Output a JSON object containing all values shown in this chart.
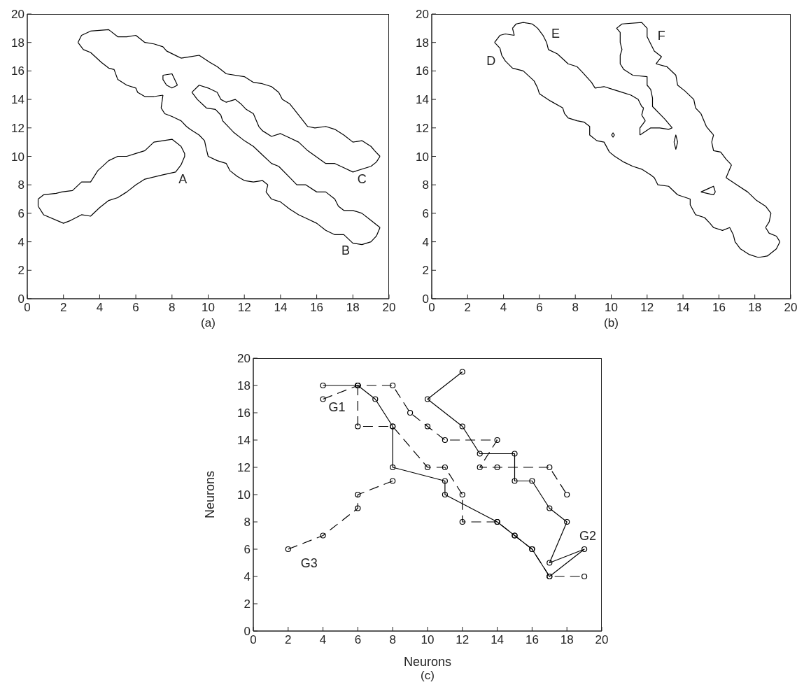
{
  "chart_data": [
    {
      "type": "line",
      "xlim": [
        0,
        20
      ],
      "ylim": [
        0,
        20
      ],
      "xticks": [
        0,
        2,
        4,
        6,
        8,
        10,
        12,
        14,
        16,
        18,
        20
      ],
      "yticks": [
        0,
        2,
        4,
        6,
        8,
        10,
        12,
        14,
        16,
        18,
        20
      ],
      "grid": false,
      "legend": false,
      "series": [
        {
          "color": "#000000",
          "line_style": "solid",
          "x": [
            2.8,
            3.0,
            3.5,
            4.5,
            5.0,
            5.5,
            6.0,
            6.5,
            7.0,
            7.5,
            7.7,
            8.5,
            9.0,
            9.5,
            10.1,
            10.5,
            11.0,
            12.0,
            12.5,
            13.0,
            13.5,
            13.9,
            14.1,
            14.5,
            15.0,
            15.5,
            15.9,
            16.5,
            17.0,
            17.5,
            18.0,
            18.5,
            19.0,
            19.2,
            19.5
          ],
          "values": [
            18.0,
            18.5,
            18.8,
            18.9,
            18.4,
            18.4,
            18.5,
            18.0,
            17.9,
            17.7,
            17.4,
            16.9,
            17.0,
            17.1,
            16.6,
            16.3,
            15.8,
            15.6,
            15.2,
            15.1,
            14.9,
            14.5,
            14.0,
            13.7,
            12.9,
            12.1,
            12.0,
            12.1,
            11.9,
            11.5,
            11.0,
            11.1,
            10.7,
            10.4,
            10.0
          ]
        },
        {
          "color": "#000000",
          "line_style": "solid",
          "x": [
            19.5,
            19.3,
            19.0,
            18.0,
            17.5,
            17.0,
            16.5,
            15.5,
            15.0,
            14.5,
            14.0,
            13.5,
            13.0,
            12.8,
            12.5,
            12.1,
            11.8,
            11.5,
            11.0,
            10.7,
            10.5,
            10.0,
            9.5,
            9.1
          ],
          "values": [
            10.0,
            9.6,
            9.3,
            8.9,
            9.2,
            9.5,
            9.5,
            10.4,
            11.0,
            11.3,
            11.6,
            11.4,
            11.8,
            12.1,
            13.0,
            13.3,
            13.7,
            14.0,
            13.8,
            14.0,
            14.5,
            14.8,
            15.0,
            14.5
          ]
        },
        {
          "color": "#000000",
          "line_style": "solid",
          "x": [
            9.1,
            9.4,
            9.9,
            10.4,
            10.7,
            10.8,
            11.4,
            12.0,
            12.5,
            13.0,
            13.5,
            13.9,
            14.6,
            14.9,
            15.4,
            16.0,
            16.5,
            17.0,
            17.2,
            17.5,
            18.0,
            18.5,
            19.0,
            19.5
          ],
          "values": [
            14.5,
            14.0,
            13.4,
            13.3,
            12.9,
            12.5,
            11.7,
            11.1,
            10.7,
            10.1,
            9.5,
            9.3,
            8.4,
            8.0,
            8.0,
            7.5,
            7.5,
            7.0,
            6.5,
            6.2,
            6.2,
            6.0,
            5.5,
            5.0
          ]
        },
        {
          "color": "#000000",
          "line_style": "solid",
          "x": [
            19.5,
            19.3,
            19.0,
            18.5,
            18.0,
            17.5,
            17.0,
            16.5,
            16.0,
            15.5,
            15.0,
            14.5,
            14.0,
            13.5,
            13.2
          ],
          "values": [
            5.0,
            4.4,
            4.0,
            3.8,
            3.9,
            4.5,
            4.5,
            4.8,
            5.3,
            5.6,
            5.9,
            6.3,
            6.8,
            7.0,
            7.5
          ]
        },
        {
          "color": "#000000",
          "line_style": "solid",
          "x": [
            13.2,
            13.3
          ],
          "values": [
            7.5,
            8.0
          ]
        },
        {
          "color": "#000000",
          "line_style": "solid",
          "x": [
            13.3,
            13.0,
            12.5,
            12.0,
            11.6,
            11.2,
            11.0,
            10.5,
            10.0,
            9.9,
            9.8,
            9.5,
            9.0,
            8.8,
            8.5,
            8.0,
            7.6,
            7.4
          ],
          "values": [
            8.0,
            8.3,
            8.2,
            8.3,
            8.6,
            9.0,
            9.5,
            9.7,
            10.0,
            10.5,
            11.1,
            11.5,
            11.9,
            12.1,
            12.5,
            12.8,
            13.0,
            13.4
          ]
        },
        {
          "color": "#000000",
          "line_style": "solid",
          "x": [
            7.4,
            7.5
          ],
          "values": [
            13.4,
            14.3
          ]
        },
        {
          "color": "#000000",
          "line_style": "solid",
          "x": [
            7.5,
            7.0,
            6.5,
            6.1,
            6.0,
            5.5,
            5.0,
            4.8,
            4.5,
            4.1,
            3.5,
            3.1,
            2.8
          ],
          "values": [
            14.3,
            14.2,
            14.2,
            14.5,
            14.8,
            15.0,
            15.4,
            16.1,
            16.2,
            16.6,
            17.3,
            17.5,
            18.0
          ]
        },
        {
          "color": "#000000",
          "line_style": "solid",
          "x": [
            7.5,
            8.0,
            8.3
          ],
          "values": [
            15.7,
            15.8,
            15.0
          ]
        },
        {
          "color": "#000000",
          "line_style": "solid",
          "x": [
            8.3,
            8.0,
            7.7,
            7.5,
            7.5
          ],
          "values": [
            15.0,
            14.8,
            15.0,
            15.4,
            15.7
          ]
        },
        {
          "color": "#000000",
          "line_style": "solid",
          "x": [
            0.6,
            0.9,
            1.6,
            1.9,
            2.5,
            3.0,
            3.5,
            3.9,
            4.5,
            5.0,
            5.5,
            6.0,
            6.5,
            7.0,
            7.5,
            8.0,
            8.5,
            8.7,
            8.7,
            8.5,
            8.2,
            7.5,
            6.5,
            6.0,
            5.5,
            5.0,
            4.5,
            4.0,
            3.5,
            3.0,
            2.4,
            2.0,
            0.9,
            0.6
          ],
          "values": [
            7.0,
            7.3,
            7.4,
            7.5,
            7.6,
            8.2,
            8.2,
            9.0,
            9.7,
            10.0,
            10.0,
            10.2,
            10.4,
            11.0,
            11.1,
            11.2,
            10.7,
            10.2,
            10.0,
            9.4,
            8.9,
            8.7,
            8.4,
            8.0,
            7.5,
            7.1,
            6.9,
            6.4,
            5.8,
            5.9,
            5.5,
            5.3,
            5.9,
            6.5
          ]
        },
        {
          "color": "#000000",
          "line_style": "solid",
          "x": [
            0.6,
            0.6
          ],
          "values": [
            6.5,
            7.0
          ]
        }
      ],
      "annotations": [
        "A",
        "B",
        "C",
        "(a)"
      ]
    },
    {
      "type": "line",
      "xlim": [
        0,
        20
      ],
      "ylim": [
        0,
        20
      ],
      "xticks": [
        0,
        2,
        4,
        6,
        8,
        10,
        12,
        14,
        16,
        18,
        20
      ],
      "yticks": [
        0,
        2,
        4,
        6,
        8,
        10,
        12,
        14,
        16,
        18,
        20
      ],
      "grid": false,
      "legend": false,
      "series": [
        {
          "color": "#000000",
          "line_style": "solid",
          "x": [
            3.5,
            3.8,
            4.1,
            4.6
          ],
          "values": [
            18.0,
            18.5,
            18.6,
            18.5
          ]
        },
        {
          "color": "#000000",
          "line_style": "solid",
          "x": [
            4.6,
            4.5
          ],
          "values": [
            18.5,
            19.0
          ]
        },
        {
          "color": "#000000",
          "line_style": "solid",
          "x": [
            4.5,
            4.7,
            5.1,
            5.6,
            5.9,
            6.2,
            6.4,
            6.5,
            7.0,
            7.6,
            8.1,
            8.4,
            8.9,
            9.1,
            9.6,
            10.1,
            10.6,
            11.1,
            11.5,
            11.7,
            11.8
          ],
          "values": [
            19.0,
            19.3,
            19.4,
            19.3,
            19.0,
            18.5,
            18.0,
            17.5,
            17.2,
            16.5,
            16.3,
            15.9,
            15.2,
            14.8,
            14.9,
            14.7,
            14.5,
            14.3,
            14.0,
            13.5,
            13.4
          ]
        },
        {
          "color": "#000000",
          "line_style": "solid",
          "x": [
            11.8,
            11.7
          ],
          "values": [
            13.4,
            12.9
          ]
        },
        {
          "color": "#000000",
          "line_style": "solid",
          "x": [
            11.7,
            11.9
          ],
          "values": [
            12.9,
            12.5
          ]
        },
        {
          "color": "#000000",
          "line_style": "solid",
          "x": [
            11.9,
            11.6,
            11.6
          ],
          "values": [
            12.5,
            12.0,
            11.5
          ]
        },
        {
          "color": "#000000",
          "line_style": "solid",
          "x": [
            11.6,
            12.2,
            12.7,
            13.2,
            13.4
          ],
          "values": [
            11.5,
            12.0,
            12.0,
            11.9,
            12.0
          ]
        },
        {
          "color": "#000000",
          "line_style": "solid",
          "x": [
            13.4,
            13.0,
            12.3,
            12.3,
            12.2,
            12.0,
            12.0,
            11.2,
            10.7,
            10.5,
            10.5,
            10.6,
            10.5,
            10.5,
            10.3,
            10.6,
            11.7,
            12.0,
            12.0,
            12.2,
            12.4,
            12.8,
            12.5
          ],
          "values": [
            12.0,
            12.6,
            13.5,
            14.1,
            14.7,
            15.0,
            15.6,
            15.7,
            16.1,
            16.5,
            17.1,
            17.5,
            18.0,
            18.7,
            19.0,
            19.3,
            19.4,
            19.0,
            18.4,
            17.9,
            17.4,
            17.0,
            16.5
          ]
        },
        {
          "color": "#000000",
          "line_style": "solid",
          "x": [
            12.5,
            13.1,
            13.6,
            13.7,
            14.1,
            14.6,
            14.7,
            15.0,
            15.3,
            15.7
          ],
          "values": [
            16.5,
            16.3,
            15.7,
            15.0,
            14.6,
            14.0,
            13.4,
            13.0,
            12.1,
            11.5
          ]
        },
        {
          "color": "#000000",
          "line_style": "solid",
          "x": [
            15.7,
            15.6
          ],
          "values": [
            11.5,
            11.0
          ]
        },
        {
          "color": "#000000",
          "line_style": "solid",
          "x": [
            15.6,
            15.7,
            16.1,
            16.4,
            16.7
          ],
          "values": [
            11.0,
            10.4,
            10.3,
            9.8,
            9.4
          ]
        },
        {
          "color": "#000000",
          "line_style": "solid",
          "x": [
            16.7,
            16.4
          ],
          "values": [
            9.4,
            8.5
          ]
        },
        {
          "color": "#000000",
          "line_style": "solid",
          "x": [
            16.4,
            17.0,
            17.6,
            18.1,
            18.6,
            18.9
          ],
          "values": [
            8.5,
            8.0,
            7.5,
            6.9,
            6.5,
            6.0
          ]
        },
        {
          "color": "#000000",
          "line_style": "solid",
          "x": [
            18.9,
            18.8,
            18.6
          ],
          "values": [
            6.0,
            5.4,
            5.0
          ]
        },
        {
          "color": "#000000",
          "line_style": "solid",
          "x": [
            18.6,
            18.8,
            19.2,
            19.4
          ],
          "values": [
            5.0,
            4.6,
            4.4,
            4.0
          ]
        },
        {
          "color": "#000000",
          "line_style": "solid",
          "x": [
            19.4,
            19.2,
            18.7,
            18.2,
            17.7,
            17.2,
            16.9,
            16.8,
            16.6,
            16.2,
            15.7,
            15.5,
            15.2,
            14.7,
            14.4,
            14.4,
            13.7,
            13.2,
            12.6,
            12.4,
            12.2,
            11.7,
            11.2,
            10.7,
            10.2,
            9.9,
            9.6,
            9.2,
            8.9,
            8.8,
            8.8,
            8.5,
            8.1,
            7.6,
            7.4,
            7.3,
            6.6,
            6.0,
            5.9,
            5.7,
            5.1,
            4.8,
            4.5,
            4.1,
            3.9,
            3.8,
            3.5
          ],
          "values": [
            4.0,
            3.5,
            3.0,
            2.9,
            3.1,
            3.5,
            4.0,
            4.5,
            5.0,
            4.8,
            5.0,
            5.3,
            5.7,
            5.9,
            6.6,
            7.0,
            7.3,
            7.9,
            8.0,
            8.5,
            8.7,
            9.1,
            9.3,
            9.6,
            10.0,
            10.3,
            11.0,
            11.1,
            11.4,
            11.5,
            12.1,
            12.4,
            12.5,
            12.7,
            13.0,
            13.4,
            13.9,
            14.4,
            14.8,
            15.3,
            16.0,
            16.1,
            16.2,
            16.7,
            17.1,
            17.6,
            18.0
          ]
        },
        {
          "type": "scatter",
          "color": "#000000",
          "marker": "diamond",
          "x": [
            10.1
          ],
          "values": [
            11.5
          ]
        },
        {
          "color": "#000000",
          "line_style": "solid",
          "x": [
            13.5,
            13.6,
            13.7
          ],
          "values": [
            11.0,
            11.5,
            11.0
          ]
        },
        {
          "color": "#000000",
          "line_style": "solid",
          "x": [
            13.5,
            13.6,
            13.7
          ],
          "values": [
            11.0,
            10.5,
            11.0
          ]
        },
        {
          "color": "#000000",
          "line_style": "solid",
          "x": [
            15.0,
            15.7,
            15.8
          ],
          "values": [
            7.5,
            7.9,
            7.5
          ]
        },
        {
          "color": "#000000",
          "line_style": "solid",
          "x": [
            15.0,
            15.7,
            15.8
          ],
          "values": [
            7.5,
            7.3,
            7.5
          ]
        }
      ],
      "annotations": [
        "D",
        "E",
        "F",
        "(b)"
      ]
    },
    {
      "type": "line",
      "xlabel": "Neurons",
      "ylabel": "Neurons",
      "xlim": [
        0,
        20
      ],
      "ylim": [
        0,
        20
      ],
      "xticks": [
        0,
        2,
        4,
        6,
        8,
        10,
        12,
        14,
        16,
        18,
        20
      ],
      "yticks": [
        0,
        2,
        4,
        6,
        8,
        10,
        12,
        14,
        16,
        18,
        20
      ],
      "grid": false,
      "legend": false,
      "marker": "circle",
      "series": [
        {
          "color": "#000000",
          "line_style": "solid",
          "x": [
            4,
            6,
            7,
            8,
            8,
            11,
            11,
            14,
            15,
            16,
            17,
            19,
            17,
            18,
            17,
            16,
            15,
            15,
            13,
            12,
            10,
            12
          ],
          "values": [
            18,
            18,
            17,
            15,
            12,
            11,
            10,
            8,
            7,
            6,
            4,
            6,
            5,
            8,
            9,
            11,
            11,
            13,
            13,
            15,
            17,
            19
          ]
        },
        {
          "color": "#000000",
          "line_style": "dashed",
          "x": [
            4,
            6,
            8,
            9,
            10,
            11,
            14,
            13,
            14,
            17,
            18
          ],
          "values": [
            17,
            18,
            18,
            16,
            15,
            14,
            14,
            12,
            12,
            12,
            10
          ]
        },
        {
          "color": "#000000",
          "line_style": "dashed",
          "x": [
            6,
            6,
            8,
            10,
            11,
            12,
            12,
            14,
            15,
            16,
            17,
            19
          ],
          "values": [
            18,
            15,
            15,
            12,
            12,
            10,
            8,
            8,
            7,
            6,
            4,
            4
          ]
        },
        {
          "color": "#000000",
          "line_style": "dashed",
          "x": [
            2,
            4,
            6,
            6,
            8
          ],
          "values": [
            6,
            7,
            9,
            10,
            11
          ]
        }
      ],
      "annotations": [
        "G1",
        "G2",
        "G3",
        "(c)"
      ]
    }
  ]
}
